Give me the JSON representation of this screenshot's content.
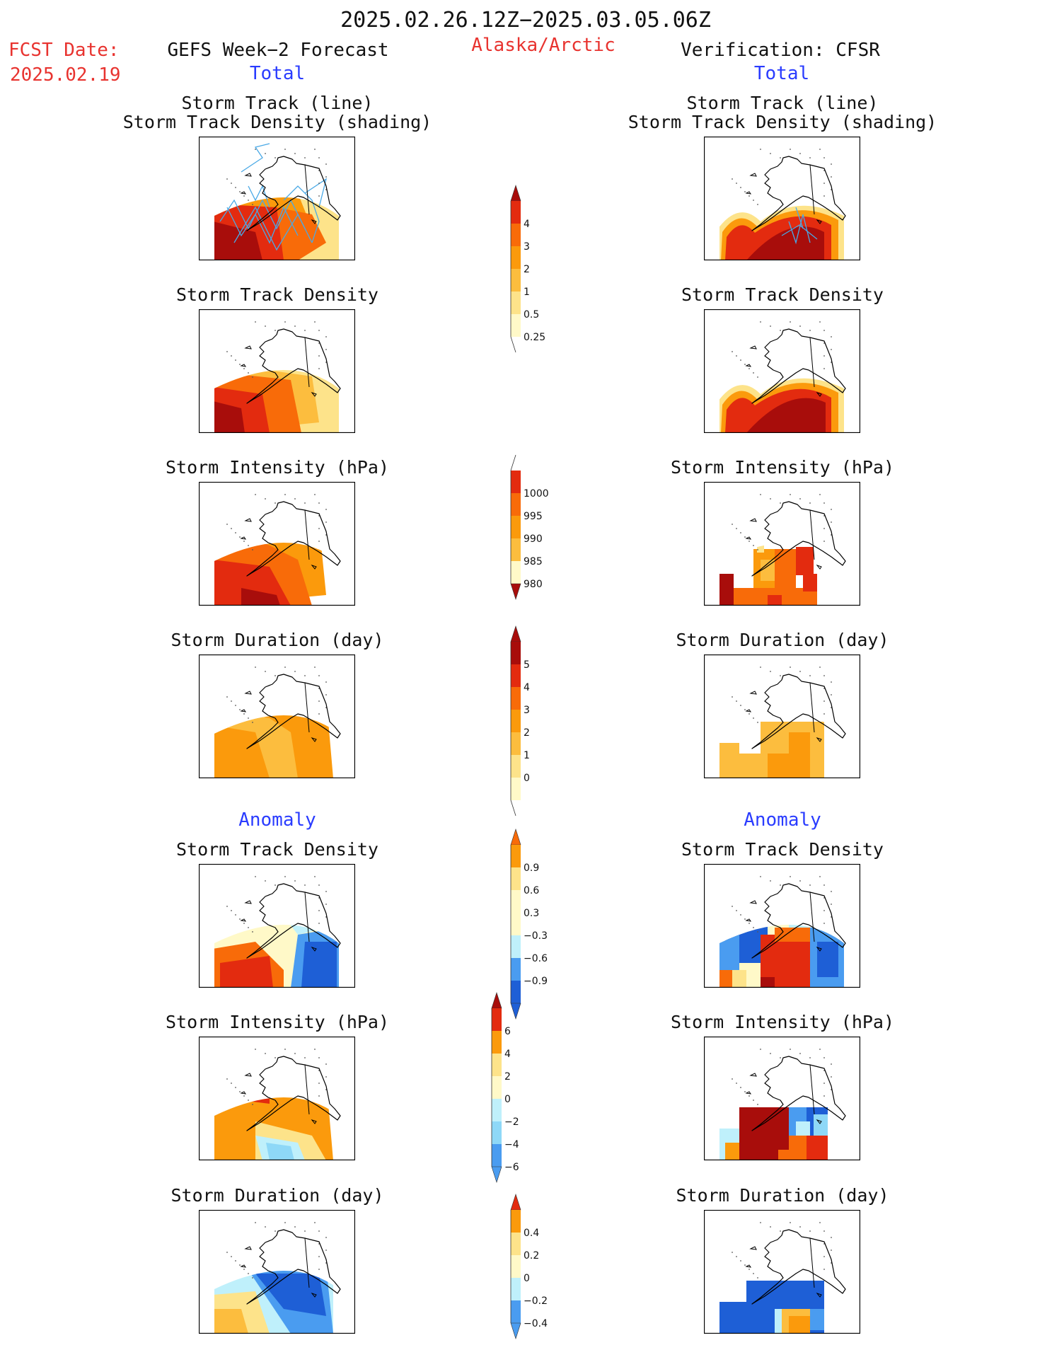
{
  "header": {
    "date_range": "2025.02.26.12Z−2025.03.05.06Z",
    "fcst_label": "FCST Date:",
    "fcst_date": "2025.02.19",
    "left_title": "GEFS Week−2 Forecast",
    "region": "Alaska/Arctic",
    "right_title": "Verification: CFSR",
    "left_sub": "Total",
    "right_sub": "Total",
    "anomaly_left": "Anomaly",
    "anomaly_right": "Anomaly"
  },
  "panels": {
    "track_title_1": "Storm Track (line)",
    "track_title_2": "Storm Track Density (shading)",
    "density": "Storm Track Density",
    "intensity": "Storm Intensity (hPa)",
    "duration": "Storm Duration (day)"
  },
  "colors": {
    "c0": "#fff9c8",
    "c1": "#fde38a",
    "c2": "#fcbd3e",
    "c3": "#fb9a0c",
    "c4": "#f86b09",
    "c5": "#e32b0f",
    "c6": "#a80d0b",
    "b1": "#bff0fb",
    "b2": "#8ed8f7",
    "b3": "#4a9cf0",
    "b4": "#1e5fd6",
    "track_line": "#4aa9e6"
  },
  "colorbars": [
    {
      "id": "density",
      "labels": [
        "4",
        "3",
        "2",
        "1",
        "0.5",
        "0.25"
      ]
    },
    {
      "id": "intensity",
      "labels": [
        "1000",
        "995",
        "990",
        "985",
        "980"
      ]
    },
    {
      "id": "duration",
      "labels": [
        "5",
        "4",
        "3",
        "2",
        "1",
        "0"
      ]
    },
    {
      "id": "anom_density",
      "labels": [
        "0.9",
        "0.6",
        "0.3",
        "−0.3",
        "−0.6",
        "−0.9"
      ]
    },
    {
      "id": "anom_intensity",
      "labels": [
        "6",
        "4",
        "2",
        "0",
        "−2",
        "−4",
        "−6"
      ]
    },
    {
      "id": "anom_duration",
      "labels": [
        "0.4",
        "0.2",
        "0",
        "−0.2",
        "−0.4"
      ]
    }
  ]
}
